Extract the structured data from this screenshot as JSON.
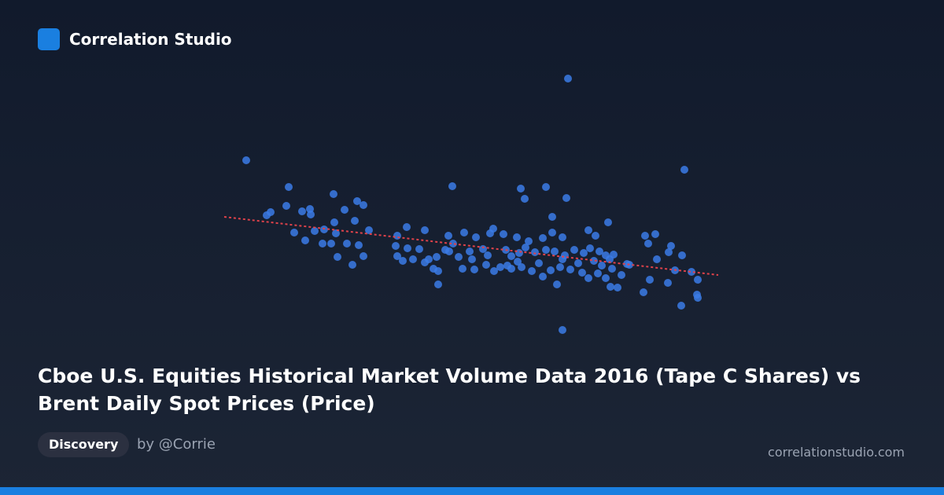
{
  "header": {
    "brand": "Correlation Studio"
  },
  "chart_data": {
    "type": "scatter",
    "title": "Cboe U.S. Equities Historical Market Volume Data 2016 (Tape C Shares) vs Brent Daily Spot Prices (Price)",
    "color": "#3b7be6",
    "xlim": [
      0,
      640
    ],
    "ylim": [
      0,
      340
    ],
    "x": [
      442,
      33,
      590,
      295,
      87,
      382,
      414,
      144,
      387,
      440,
      174,
      182,
      84,
      64,
      59,
      104,
      114,
      115,
      158,
      422,
      493,
      171,
      145,
      237,
      189,
      94,
      120,
      132,
      147,
      108,
      130,
      141,
      161,
      176,
      149,
      182,
      168,
      225,
      260,
      290,
      310,
      325,
      343,
      347,
      360,
      377,
      392,
      410,
      422,
      435,
      468,
      477,
      540,
      553,
      544,
      570,
      573,
      587,
      555,
      223,
      238,
      253,
      265,
      275,
      291,
      303,
      317,
      334,
      340,
      363,
      370,
      380,
      388,
      400,
      414,
      425,
      438,
      450,
      462,
      470,
      482,
      490,
      500,
      517,
      225,
      232,
      245,
      260,
      271,
      277,
      308,
      323,
      338,
      356,
      370,
      383,
      396,
      410,
      420,
      432,
      445,
      460,
      468,
      480,
      490,
      498,
      510,
      520,
      277,
      428,
      496,
      505,
      538,
      546,
      569,
      578,
      599,
      607,
      606,
      607,
      586,
      435,
      348,
      296,
      320,
      286,
      435,
      455,
      475,
      485,
      495,
      405,
      378,
      365
    ],
    "y": [
      330,
      226,
      214,
      193,
      192,
      190,
      192,
      183,
      177,
      178,
      174,
      169,
      168,
      160,
      156,
      161,
      164,
      157,
      163,
      154,
      147,
      149,
      147,
      141,
      137,
      134,
      136,
      138,
      133,
      124,
      120,
      120,
      120,
      118,
      103,
      104,
      93,
      130,
      137,
      130,
      134,
      128,
      133,
      139,
      132,
      128,
      123,
      127,
      134,
      128,
      137,
      130,
      130,
      132,
      120,
      109,
      117,
      105,
      100,
      117,
      114,
      113,
      100,
      103,
      110,
      103,
      110,
      113,
      105,
      112,
      104,
      108,
      115,
      109,
      112,
      110,
      105,
      112,
      108,
      114,
      110,
      105,
      106,
      94,
      104,
      98,
      100,
      96,
      88,
      85,
      88,
      87,
      93,
      90,
      88,
      90,
      85,
      78,
      86,
      90,
      87,
      83,
      76,
      82,
      76,
      88,
      80,
      93,
      68,
      68,
      65,
      64,
      58,
      74,
      70,
      86,
      84,
      74,
      55,
      51,
      41,
      10,
      85,
      120,
      100,
      112,
      100,
      95,
      98,
      92,
      100,
      95,
      97,
      92
    ],
    "trendline": {
      "x": [
        5,
        633
      ],
      "y": [
        154,
        80
      ],
      "color": "#e0424a"
    }
  },
  "footer": {
    "tag": "Discovery",
    "author": "by @Corrie",
    "site": "correlationstudio.com"
  }
}
